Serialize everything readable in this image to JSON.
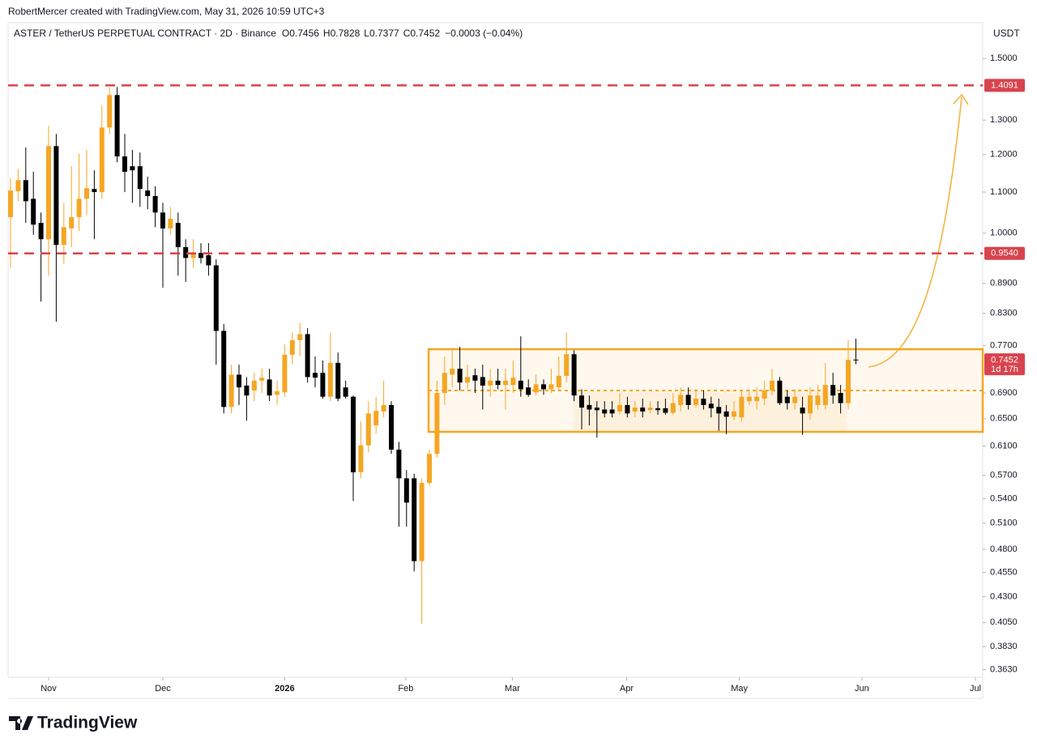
{
  "header": {
    "credit": "RobertMercer created with TradingView.com, May 31, 2026 10:59 UTC+3",
    "logo_text": "TradingView"
  },
  "chart_data": {
    "type": "candlestick",
    "title": "ASTER / TetherUS PERPETUAL CONTRACT · 2D · Binance",
    "ohlc_labels": [
      "O",
      "H",
      "L",
      "C"
    ],
    "change": "−0.0003 (−0.04%)",
    "currency": "USDT",
    "countdown": "1d 17h",
    "up_color": "#f5a623",
    "down_color": "#000000",
    "log_scale": true,
    "grid": false,
    "open": [
      1.038,
      1.102,
      1.131,
      1.083,
      1.024,
      0.986,
      1.224,
      0.973,
      1.011,
      1.038,
      1.083,
      1.108,
      1.1,
      1.278,
      1.378,
      1.195,
      1.168,
      1.168,
      1.104,
      1.09,
      1.049,
      1.011,
      1.024,
      0.968,
      0.944,
      0.955,
      0.95,
      0.928,
      0.797,
      0.668,
      0.72,
      0.702,
      0.694,
      0.71,
      0.712,
      0.687,
      0.691,
      0.754,
      0.78,
      0.791,
      0.723,
      0.723,
      0.684,
      0.74,
      0.699,
      0.684,
      0.574,
      0.611,
      0.64,
      0.661,
      0.671,
      0.605,
      0.566,
      0.566,
      0.467,
      0.56,
      0.599,
      0.69,
      0.72,
      0.73,
      0.707,
      0.719,
      0.716,
      0.702,
      0.71,
      0.703,
      0.703,
      0.71,
      0.699,
      0.691,
      0.704,
      0.696,
      0.699,
      0.718,
      0.755,
      0.686,
      0.671,
      0.667,
      0.664,
      0.664,
      0.661,
      0.671,
      0.661,
      0.667,
      0.663,
      0.666,
      0.666,
      0.659,
      0.671,
      0.687,
      0.671,
      0.681,
      0.673,
      0.668,
      0.661,
      0.653,
      0.652,
      0.677,
      0.677,
      0.681,
      0.694,
      0.71,
      0.684,
      0.674,
      0.667,
      0.658,
      0.671,
      0.671,
      0.703,
      0.69,
      0.674,
      0.7456
    ],
    "high": [
      1.136,
      1.161,
      1.22,
      1.153,
      1.049,
      1.283,
      1.259,
      1.073,
      1.168,
      1.202,
      1.213,
      1.157,
      1.345,
      1.404,
      1.404,
      1.259,
      1.213,
      1.206,
      1.14,
      1.115,
      1.073,
      1.063,
      1.049,
      0.986,
      0.986,
      0.977,
      0.977,
      0.941,
      0.81,
      0.737,
      0.737,
      0.716,
      0.723,
      0.73,
      0.73,
      0.71,
      0.772,
      0.794,
      0.812,
      0.802,
      0.751,
      0.744,
      0.794,
      0.758,
      0.71,
      0.686,
      0.646,
      0.677,
      0.684,
      0.71,
      0.677,
      0.616,
      0.577,
      0.572,
      0.566,
      0.605,
      0.71,
      0.751,
      0.765,
      0.768,
      0.737,
      0.73,
      0.737,
      0.73,
      0.73,
      0.73,
      0.744,
      0.787,
      0.712,
      0.72,
      0.712,
      0.73,
      0.751,
      0.794,
      0.762,
      0.696,
      0.686,
      0.677,
      0.677,
      0.677,
      0.69,
      0.684,
      0.677,
      0.681,
      0.677,
      0.677,
      0.681,
      0.69,
      0.699,
      0.699,
      0.696,
      0.694,
      0.684,
      0.681,
      0.671,
      0.677,
      0.694,
      0.696,
      0.699,
      0.71,
      0.73,
      0.716,
      0.694,
      0.696,
      0.684,
      0.699,
      0.703,
      0.74,
      0.723,
      0.703,
      0.78,
      0.7828
    ],
    "low": [
      0.923,
      1.077,
      1.024,
      0.996,
      0.853,
      0.906,
      0.814,
      0.932,
      0.968,
      1.005,
      1.043,
      0.986,
      1.083,
      1.259,
      1.179,
      1.1,
      1.073,
      1.063,
      1.057,
      1.014,
      0.881,
      0.996,
      0.906,
      0.893,
      0.923,
      0.932,
      0.906,
      0.737,
      0.658,
      0.658,
      0.671,
      0.647,
      0.677,
      0.69,
      0.677,
      0.671,
      0.684,
      0.737,
      0.751,
      0.707,
      0.699,
      0.681,
      0.677,
      0.677,
      0.681,
      0.537,
      0.566,
      0.601,
      0.628,
      0.652,
      0.599,
      0.506,
      0.506,
      0.456,
      0.404,
      0.556,
      0.594,
      0.671,
      0.699,
      0.694,
      0.696,
      0.69,
      0.664,
      0.684,
      0.696,
      0.664,
      0.69,
      0.684,
      0.684,
      0.686,
      0.687,
      0.69,
      0.693,
      0.707,
      0.677,
      0.634,
      0.64,
      0.622,
      0.652,
      0.652,
      0.656,
      0.652,
      0.652,
      0.652,
      0.658,
      0.656,
      0.656,
      0.656,
      0.661,
      0.664,
      0.667,
      0.664,
      0.652,
      0.632,
      0.627,
      0.648,
      0.646,
      0.671,
      0.664,
      0.671,
      0.686,
      0.671,
      0.664,
      0.664,
      0.626,
      0.648,
      0.664,
      0.664,
      0.673,
      0.658,
      0.664,
      0.7377
    ],
    "close": [
      1.104,
      1.131,
      1.077,
      1.02,
      0.986,
      1.224,
      0.973,
      1.014,
      1.038,
      1.083,
      1.11,
      1.1,
      1.278,
      1.378,
      1.195,
      1.153,
      1.157,
      1.108,
      1.09,
      1.049,
      1.011,
      1.034,
      0.968,
      0.944,
      0.955,
      0.944,
      0.928,
      0.797,
      0.668,
      0.72,
      0.699,
      0.686,
      0.71,
      0.715,
      0.686,
      0.693,
      0.754,
      0.78,
      0.791,
      0.716,
      0.715,
      0.684,
      0.74,
      0.681,
      0.684,
      0.574,
      0.611,
      0.658,
      0.662,
      0.671,
      0.605,
      0.566,
      0.535,
      0.467,
      0.56,
      0.599,
      0.69,
      0.723,
      0.73,
      0.707,
      0.716,
      0.71,
      0.702,
      0.71,
      0.703,
      0.71,
      0.715,
      0.696,
      0.687,
      0.704,
      0.696,
      0.704,
      0.718,
      0.755,
      0.686,
      0.667,
      0.664,
      0.663,
      0.658,
      0.658,
      0.671,
      0.658,
      0.667,
      0.661,
      0.667,
      0.663,
      0.659,
      0.674,
      0.687,
      0.671,
      0.681,
      0.671,
      0.666,
      0.658,
      0.653,
      0.661,
      0.684,
      0.684,
      0.684,
      0.694,
      0.71,
      0.674,
      0.674,
      0.684,
      0.658,
      0.686,
      0.686,
      0.703,
      0.686,
      0.674,
      0.745,
      0.7452
    ],
    "hlines": [
      {
        "value": 1.4091,
        "color": "#d9434d"
      },
      {
        "value": 0.954,
        "label": "0.9540",
        "color": "#d9434d"
      }
    ],
    "last_price_color": "#d9434d",
    "xlim": [
      -0.32,
      127.66
    ],
    "xticks": [
      {
        "value": 5.0,
        "label": "Nov"
      },
      {
        "value": 20.0,
        "label": "Dec"
      },
      {
        "value": 36.0,
        "label": "2026"
      },
      {
        "value": 51.9,
        "label": "Feb"
      },
      {
        "value": 65.9,
        "label": "Mar"
      },
      {
        "value": 80.9,
        "label": "Apr"
      },
      {
        "value": 95.7,
        "label": "May"
      },
      {
        "value": 111.8,
        "label": "Jun"
      },
      {
        "value": 126.7,
        "label": "Jul"
      }
    ],
    "ylim": [
      0.3566,
      1.63
    ],
    "yticks": [
      {
        "value": 1.5,
        "label": "1.5000"
      },
      {
        "value": 1.3,
        "label": "1.3000"
      },
      {
        "value": 1.2,
        "label": "1.2000"
      },
      {
        "value": 1.1,
        "label": "1.1000"
      },
      {
        "value": 1.0,
        "label": "1.0000"
      },
      {
        "value": 0.89,
        "label": "0.8900"
      },
      {
        "value": 0.83,
        "label": "0.8300"
      },
      {
        "value": 0.77,
        "label": "0.7700"
      },
      {
        "value": 0.69,
        "label": "0.6900"
      },
      {
        "value": 0.65,
        "label": "0.6500"
      },
      {
        "value": 0.61,
        "label": "0.6100"
      },
      {
        "value": 0.57,
        "label": "0.5700"
      },
      {
        "value": 0.54,
        "label": "0.5400"
      },
      {
        "value": 0.51,
        "label": "0.5100"
      },
      {
        "value": 0.48,
        "label": "0.4800"
      },
      {
        "value": 0.455,
        "label": "0.4550"
      },
      {
        "value": 0.43,
        "label": "0.4300"
      },
      {
        "value": 0.405,
        "label": "0.4050"
      },
      {
        "value": 0.383,
        "label": "0.3830"
      },
      {
        "value": 0.363,
        "label": "0.3630"
      }
    ]
  }
}
